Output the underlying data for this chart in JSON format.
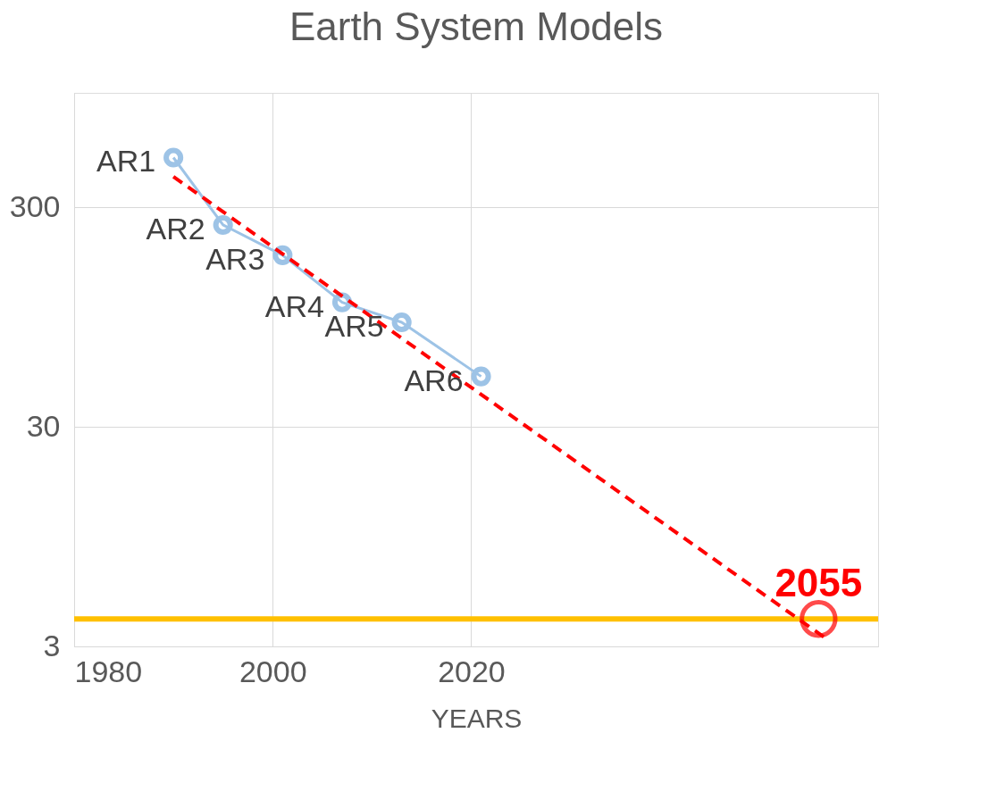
{
  "chart_data": {
    "type": "line",
    "title": "Earth System Models",
    "xlabel": "YEARS",
    "xlim": [
      1980,
      2061
    ],
    "xticks": [
      1980,
      2000,
      2020
    ],
    "ylim": [
      3,
      1000
    ],
    "yticks": [
      3,
      30,
      300
    ],
    "log": "y",
    "grid": true,
    "series": [
      {
        "color": "#9dc3e6",
        "marker": "circle",
        "line_style": "solid",
        "x": [
          1990,
          1995,
          2001,
          2007,
          2013,
          2021
        ],
        "values": [
          507,
          250,
          182,
          111,
          90,
          51
        ]
      },
      {
        "type": "line",
        "color": "#ff0000",
        "marker": "none",
        "line_style": "dashed",
        "x": [
          1990,
          2056
        ],
        "values": [
          415,
          3.2
        ]
      },
      {
        "type": "scatter",
        "name": "2055",
        "color": "#ff0000",
        "marker": "circle",
        "x": [
          2055
        ],
        "values": [
          4
        ]
      }
    ],
    "ref_lines": [
      {
        "axis": "y",
        "value": 4,
        "color": "#ffc000",
        "line_style": "solid"
      }
    ],
    "annotations": [
      {
        "text": "AR1",
        "x": 1990,
        "y": 507
      },
      {
        "text": "AR2",
        "x": 1995,
        "y": 250
      },
      {
        "text": "AR3",
        "x": 2001,
        "y": 182
      },
      {
        "text": "AR4",
        "x": 2007,
        "y": 111
      },
      {
        "text": "AR5",
        "x": 2013,
        "y": 90
      },
      {
        "text": "AR6",
        "x": 2021,
        "y": 51
      }
    ]
  }
}
